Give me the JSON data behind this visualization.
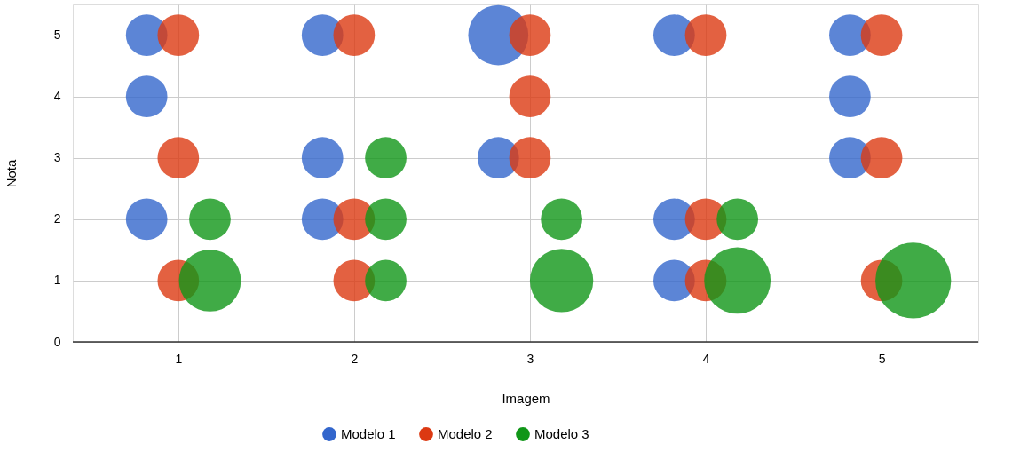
{
  "chart_data": {
    "type": "bubble",
    "xlabel": "Imagem",
    "ylabel": "Nota",
    "xlim": [
      0.4,
      5.55
    ],
    "xticks": [
      1,
      2,
      3,
      4,
      5
    ],
    "ylim": [
      0,
      5.5
    ],
    "yticks": [
      0,
      1,
      2,
      3,
      4,
      5
    ],
    "grid": true,
    "legend": "bottom",
    "series": [
      {
        "name": "Modelo 1",
        "color": "#3366cc",
        "x": [
          0.82,
          0.82,
          0.82,
          1.82,
          1.82,
          1.82,
          2.82,
          2.82,
          3.82,
          3.82,
          3.82,
          4.82,
          4.82,
          4.82
        ],
        "values": [
          5,
          4,
          2,
          5,
          3,
          2,
          5,
          3,
          5,
          2,
          1,
          5,
          4,
          3
        ],
        "sizes": [
          0.3,
          0.3,
          0.3,
          0.3,
          0.3,
          0.3,
          0.63,
          0.3,
          0.3,
          0.3,
          0.3,
          0.3,
          0.3,
          0.3
        ]
      },
      {
        "name": "Modelo 2",
        "color": "#dc3912",
        "x": [
          1,
          1,
          1,
          2,
          2,
          2,
          3,
          3,
          3,
          4,
          4,
          4,
          5,
          5,
          5
        ],
        "values": [
          5,
          3,
          1,
          5,
          2,
          1,
          5,
          4,
          3,
          5,
          2,
          1,
          5,
          3,
          1
        ],
        "sizes": [
          0.3,
          0.3,
          0.3,
          0.3,
          0.3,
          0.3,
          0.3,
          0.3,
          0.3,
          0.3,
          0.3,
          0.3,
          0.3,
          0.3,
          0.3
        ]
      },
      {
        "name": "Modelo 3",
        "color": "#109618",
        "x": [
          1.18,
          1.18,
          2.18,
          2.18,
          2.18,
          3.18,
          3.18,
          4.18,
          4.18,
          5.18
        ],
        "values": [
          2,
          1,
          3,
          2,
          1,
          2,
          1,
          2,
          1,
          1
        ],
        "sizes": [
          0.3,
          0.67,
          0.3,
          0.3,
          0.3,
          0.3,
          0.7,
          0.3,
          0.77,
          1
        ]
      }
    ]
  }
}
